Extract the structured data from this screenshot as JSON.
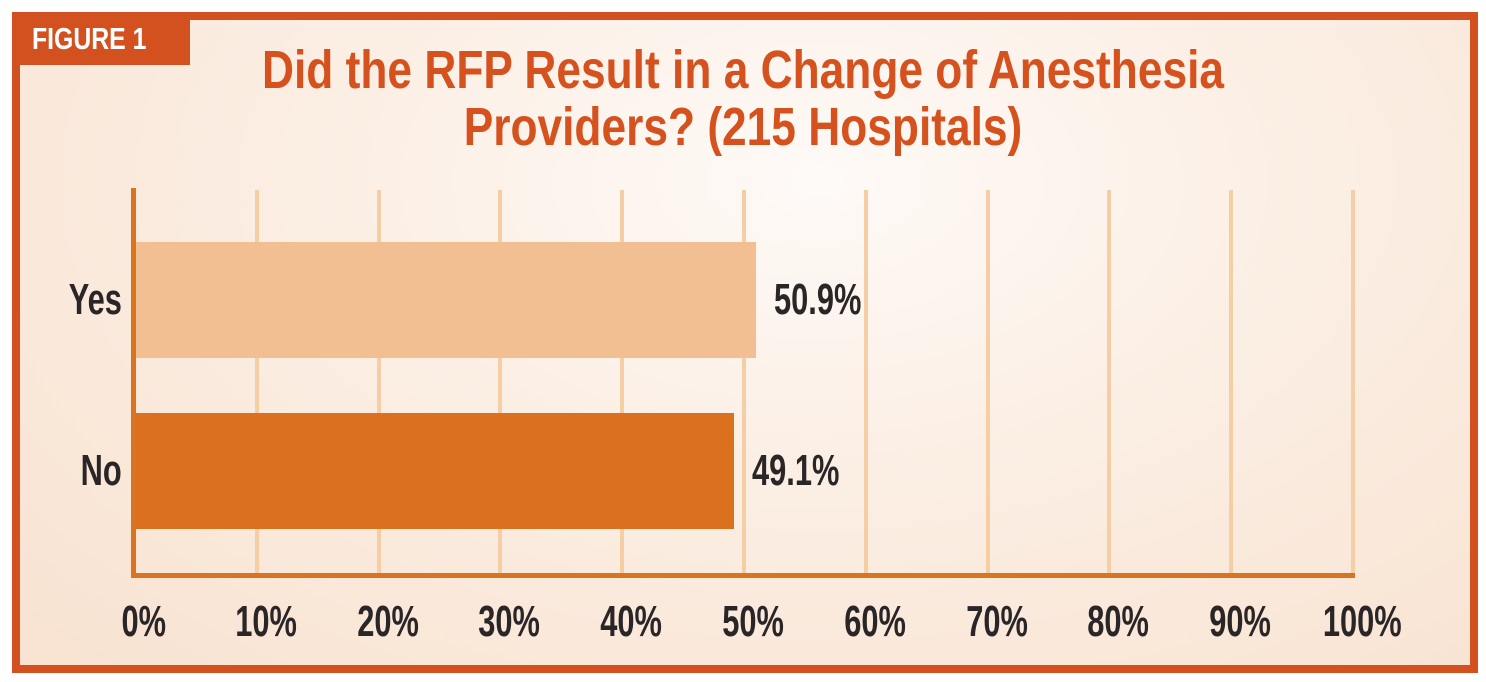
{
  "figure_label": "FIGURE 1",
  "title": {
    "line1": "Did the RFP Result in a Change of Anesthesia",
    "line2": "Providers? (215 Hospitals)"
  },
  "chart_data": {
    "type": "bar",
    "orientation": "horizontal",
    "title": "Did the RFP Result in a Change of Anesthesia Providers? (215 Hospitals)",
    "sample_size": "215 Hospitals",
    "categories": [
      "Yes",
      "No"
    ],
    "values": [
      50.9,
      49.1
    ],
    "value_labels": [
      "50.9%",
      "49.1%"
    ],
    "x_ticks": [
      "0%",
      "10%",
      "20%",
      "30%",
      "40%",
      "50%",
      "60%",
      "70%",
      "80%",
      "90%",
      "100%"
    ],
    "xlim": [
      0,
      100
    ],
    "grid": true,
    "legend": "none",
    "bar_colors": [
      "#F2BF93",
      "#DB701E"
    ]
  },
  "colors": {
    "frame_border": "#D2511E",
    "figure_label_bg": "#D2511E",
    "figure_label_text": "#FFFFFF",
    "title_text": "#D5521E",
    "axis_line": "#D97420",
    "gridline": "#F6CEA6",
    "label_text": "#2A2627",
    "bar_yes": "#F2BF93",
    "bar_no": "#DB701E"
  }
}
